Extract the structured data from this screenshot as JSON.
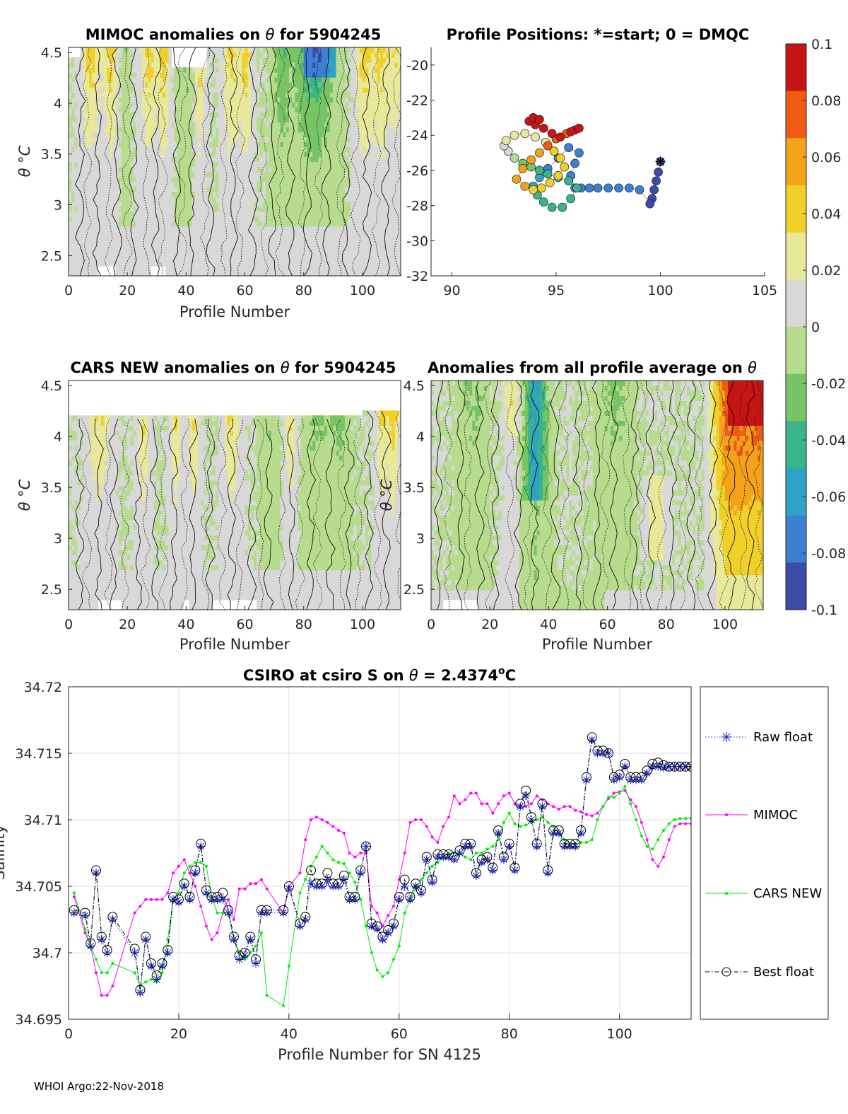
{
  "footer": "WHOI Argo:22-Nov-2018",
  "colors": {
    "raw_float": "#1f2fd6",
    "mimoc": "#ff00ff",
    "cars_new": "#00ee00",
    "best_float": "#000000",
    "colormap": [
      "#3b4ba8",
      "#3d7fd3",
      "#2fa3c6",
      "#3ab489",
      "#77c464",
      "#b7dc8e",
      "#d8d8d8",
      "#e8e89a",
      "#f2d02a",
      "#f5a21b",
      "#ef5b12",
      "#c81414"
    ]
  },
  "colorbar": {
    "ticks": [
      "0.1",
      "0.08",
      "0.06",
      "0.04",
      "0.02",
      "0",
      "-0.02",
      "-0.04",
      "-0.06",
      "-0.08",
      "-0.1"
    ]
  },
  "chart_data": [
    {
      "id": "mimoc",
      "type": "heatmap",
      "title_text": "MIMOC anomalies on ",
      "title_symbol": "θ",
      "title_suffix": " for 5904245",
      "xlabel": "Profile Number",
      "ylabel": "θ °C",
      "xticks": [
        "0",
        "20",
        "40",
        "60",
        "80",
        "100"
      ],
      "yticks": [
        "4.5",
        "4",
        "3.5",
        "3",
        "2.5"
      ],
      "xlim": [
        0,
        113
      ],
      "ylim": [
        2.3,
        4.55
      ]
    },
    {
      "id": "positions",
      "type": "scatter",
      "title": "Profile Positions: *=start; 0 = DMQC",
      "xticks": [
        "90",
        "95",
        "100",
        "105"
      ],
      "yticks": [
        "-20",
        "-22",
        "-24",
        "-26",
        "-28",
        "-30",
        "-32"
      ],
      "xlim": [
        89,
        105
      ],
      "ylim": [
        -32,
        -19
      ],
      "x": [
        100.0,
        99.9,
        99.8,
        99.7,
        99.6,
        99.5,
        99.0,
        98.5,
        98.0,
        97.5,
        97.0,
        96.6,
        96.2,
        95.9,
        95.7,
        95.9,
        96.1,
        95.6,
        95.1,
        94.6,
        94.2,
        93.9,
        94.1,
        94.4,
        94.8,
        95.3,
        95.7,
        96.0,
        95.6,
        95.1,
        94.6,
        94.2,
        93.8,
        93.4,
        93.0,
        92.7,
        92.5,
        92.6,
        93.0,
        93.5,
        94.0,
        94.5,
        94.9,
        95.2,
        95.4,
        95.1,
        94.7,
        94.3,
        93.9,
        93.5,
        93.1,
        93.4,
        93.8,
        94.2,
        94.6,
        95.0,
        95.5,
        95.9,
        96.1,
        95.7,
        95.2,
        94.8,
        94.4,
        94.0,
        93.7,
        93.9,
        94.2
      ],
      "y": [
        -25.5,
        -26.1,
        -26.6,
        -27.1,
        -27.6,
        -27.9,
        -27.1,
        -27.0,
        -27.0,
        -27.0,
        -27.0,
        -27.0,
        -27.0,
        -27.0,
        -26.3,
        -25.6,
        -25.0,
        -24.7,
        -25.3,
        -25.9,
        -26.4,
        -26.9,
        -27.4,
        -27.8,
        -28.1,
        -28.1,
        -27.6,
        -27.0,
        -26.6,
        -26.4,
        -26.2,
        -26.0,
        -25.8,
        -25.6,
        -25.3,
        -24.9,
        -24.6,
        -24.3,
        -24.0,
        -23.9,
        -24.1,
        -24.4,
        -24.9,
        -25.3,
        -25.8,
        -26.3,
        -26.7,
        -27.0,
        -27.1,
        -26.9,
        -26.5,
        -25.9,
        -25.4,
        -25.0,
        -24.6,
        -24.2,
        -23.9,
        -23.7,
        -23.6,
        -23.8,
        -24.1,
        -23.9,
        -23.6,
        -23.4,
        -23.2,
        -23.0,
        -23.1
      ],
      "values": [
        -0.1,
        -0.095,
        -0.092,
        -0.09,
        -0.088,
        -0.086,
        -0.078,
        -0.078,
        -0.078,
        -0.078,
        -0.078,
        -0.078,
        -0.078,
        -0.078,
        -0.078,
        -0.078,
        -0.078,
        -0.076,
        -0.072,
        -0.07,
        -0.06,
        -0.056,
        -0.05,
        -0.045,
        -0.045,
        -0.045,
        -0.045,
        -0.045,
        -0.045,
        -0.045,
        -0.045,
        -0.045,
        -0.02,
        -0.018,
        -0.016,
        0.01,
        0.01,
        0.02,
        0.025,
        0.028,
        0.03,
        0.032,
        0.034,
        0.036,
        0.038,
        0.04,
        0.042,
        0.045,
        0.048,
        0.05,
        0.052,
        0.056,
        0.06,
        0.064,
        0.07,
        0.075,
        0.08,
        0.085,
        0.088,
        0.09,
        0.092,
        0.094,
        0.096,
        0.098,
        0.1,
        0.1,
        0.1
      ]
    },
    {
      "id": "cars",
      "type": "heatmap",
      "title_text": "CARS NEW anomalies on ",
      "title_symbol": "θ",
      "title_suffix": " for 5904245",
      "xlabel": "Profile Number",
      "ylabel": "θ °C",
      "xticks": [
        "0",
        "20",
        "40",
        "60",
        "80",
        "100"
      ],
      "yticks": [
        "4.5",
        "4",
        "3.5",
        "3",
        "2.5"
      ],
      "xlim": [
        0,
        113
      ],
      "ylim": [
        2.3,
        4.55
      ]
    },
    {
      "id": "allavg",
      "type": "heatmap",
      "title_text": "Anomalies from all profile average on ",
      "title_symbol": "θ",
      "xlabel": "Profile Number",
      "ylabel": "θ °C",
      "xticks": [
        "0",
        "20",
        "40",
        "60",
        "80",
        "100"
      ],
      "yticks": [
        "4.5",
        "4",
        "3.5",
        "3",
        "2.5"
      ],
      "xlim": [
        0,
        113
      ],
      "ylim": [
        2.3,
        4.55
      ]
    },
    {
      "id": "salinity",
      "type": "line",
      "title_text": "CSIRO at csiro S on ",
      "title_symbol": "θ",
      "title_value": " = 2.4374",
      "title_sup": "o",
      "title_unit": "C",
      "xlabel": "Profile Number for SN 4125",
      "ylabel": "Salinity",
      "xticks": [
        "0",
        "20",
        "40",
        "60",
        "80",
        "100"
      ],
      "yticks": [
        "34.72",
        "34.715",
        "34.71",
        "34.705",
        "34.7",
        "34.695"
      ],
      "xlim": [
        0,
        113
      ],
      "ylim": [
        34.695,
        34.72
      ],
      "legend": [
        "Raw float",
        "MIMOC",
        "CARS NEW",
        "Best float"
      ],
      "x": [
        1,
        3,
        4,
        5,
        6,
        7,
        8,
        12,
        13,
        14,
        15,
        16,
        17,
        18,
        19,
        20,
        21,
        22,
        23,
        24,
        25,
        26,
        27,
        28,
        29,
        30,
        31,
        32,
        33,
        34,
        35,
        36,
        39,
        40,
        42,
        43,
        44,
        45,
        46,
        47,
        48,
        49,
        50,
        51,
        52,
        53,
        54,
        55,
        56,
        57,
        58,
        59,
        60,
        61,
        62,
        63,
        64,
        65,
        66,
        67,
        68,
        69,
        70,
        71,
        72,
        73,
        74,
        75,
        76,
        77,
        78,
        79,
        80,
        81,
        82,
        83,
        84,
        85,
        86,
        87,
        88,
        89,
        90,
        91,
        92,
        93,
        94,
        95,
        96,
        97,
        98,
        99,
        100,
        101,
        102,
        103,
        104,
        105,
        106,
        107,
        108,
        109,
        110,
        111,
        112,
        113
      ],
      "series": [
        {
          "name": "Raw float",
          "values": [
            34.703,
            34.7028,
            34.7005,
            34.706,
            34.701,
            34.7,
            34.7025,
            34.7,
            34.697,
            34.701,
            34.699,
            34.698,
            34.699,
            34.7,
            34.704,
            34.7038,
            34.705,
            34.704,
            34.706,
            34.708,
            34.7045,
            34.704,
            34.704,
            34.704,
            34.703,
            34.701,
            34.6995,
            34.6998,
            34.701,
            34.6992,
            34.703,
            34.703,
            34.703,
            34.7048,
            34.702,
            34.7025,
            34.7052,
            34.705,
            34.705,
            34.7055,
            34.705,
            34.705,
            34.7055,
            34.704,
            34.704,
            34.706,
            34.708,
            34.702,
            34.7018,
            34.701,
            34.7015,
            34.702,
            34.704,
            34.705,
            34.704,
            34.705,
            34.7045,
            34.707,
            34.7053,
            34.7072,
            34.7072,
            34.7072,
            34.707,
            34.7075,
            34.708,
            34.708,
            34.7058,
            34.7068,
            34.707,
            34.7062,
            34.709,
            34.707,
            34.708,
            34.7062,
            34.711,
            34.7118,
            34.71,
            34.708,
            34.711,
            34.706,
            34.709,
            34.709,
            34.708,
            34.708,
            34.708,
            34.709,
            34.713,
            34.716,
            34.715,
            34.715,
            34.715,
            34.713,
            34.7132,
            34.714,
            34.713,
            34.713,
            34.713,
            34.7135,
            34.714,
            34.714,
            34.7139,
            34.714,
            34.714,
            34.714,
            34.714,
            34.714
          ]
        },
        {
          "name": "MIMOC",
          "values": [
            34.7042,
            34.7015,
            34.7005,
            34.6985,
            34.6968,
            34.6968,
            34.6975,
            34.703,
            34.7035,
            34.704,
            34.704,
            34.704,
            34.704,
            34.7045,
            34.706,
            34.7065,
            34.707,
            34.706,
            34.705,
            34.7035,
            34.702,
            34.701,
            34.7015,
            34.703,
            34.704,
            34.7025,
            34.7048,
            34.7048,
            34.7052,
            34.7052,
            34.7055,
            34.7048,
            34.703,
            34.705,
            34.706,
            34.7085,
            34.71,
            34.7102,
            34.71,
            34.7098,
            34.7095,
            34.7092,
            34.709,
            34.7075,
            34.7072,
            34.7075,
            34.7075,
            34.7035,
            34.703,
            34.702,
            34.7028,
            34.7035,
            34.7055,
            34.7075,
            34.7098,
            34.71,
            34.71,
            34.7095,
            34.7087,
            34.7083,
            34.7095,
            34.7102,
            34.7118,
            34.7112,
            34.7115,
            34.712,
            34.712,
            34.7112,
            34.7112,
            34.7105,
            34.7112,
            34.7118,
            34.712,
            34.7112,
            34.711,
            34.711,
            34.7112,
            34.7118,
            34.7115,
            34.7112,
            34.711,
            34.7108,
            34.711,
            34.711,
            34.7107,
            34.7106,
            34.7104,
            34.7103,
            34.7105,
            34.711,
            34.7116,
            34.712,
            34.7121,
            34.7122,
            34.7115,
            34.711,
            34.7098,
            34.7085,
            34.707,
            34.7065,
            34.7072,
            34.7085,
            34.7095,
            34.7097,
            34.7097,
            34.7097
          ]
        },
        {
          "name": "CARS NEW",
          "values": [
            34.7045,
            34.7018,
            34.7005,
            34.6995,
            34.6985,
            34.6985,
            34.6992,
            34.6985,
            34.6975,
            34.6978,
            34.698,
            34.6978,
            34.6985,
            34.701,
            34.704,
            34.7045,
            34.706,
            34.7065,
            34.7068,
            34.7068,
            34.7065,
            34.7042,
            34.703,
            34.703,
            34.703,
            34.701,
            34.7,
            34.6995,
            34.7,
            34.7005,
            34.7015,
            34.6968,
            34.696,
            34.699,
            34.7045,
            34.7055,
            34.7065,
            34.7072,
            34.708,
            34.7075,
            34.707,
            34.7068,
            34.7067,
            34.706,
            34.7053,
            34.704,
            34.702,
            34.7,
            34.6987,
            34.6982,
            34.6985,
            34.6995,
            34.7005,
            34.703,
            34.704,
            34.7048,
            34.7055,
            34.706,
            34.7065,
            34.7068,
            34.7072,
            34.7075,
            34.7075,
            34.7075,
            34.7072,
            34.707,
            34.7075,
            34.7075,
            34.7078,
            34.708,
            34.7085,
            34.7098,
            34.7105,
            34.7097,
            34.7095,
            34.7096,
            34.7098,
            34.71,
            34.7102,
            34.7098,
            34.7095,
            34.709,
            34.7085,
            34.7082,
            34.7082,
            34.7083,
            34.7083,
            34.7085,
            34.71,
            34.711,
            34.7117,
            34.7117,
            34.712,
            34.7125,
            34.7112,
            34.71,
            34.7088,
            34.708,
            34.7078,
            34.7085,
            34.7092,
            34.7097,
            34.71,
            34.7101,
            34.7101,
            34.7101
          ]
        },
        {
          "name": "Best float",
          "values": [
            34.7032,
            34.703,
            34.7007,
            34.7062,
            34.7012,
            34.7002,
            34.7027,
            34.7003,
            34.6972,
            34.7012,
            34.6992,
            34.6983,
            34.6992,
            34.7002,
            34.7042,
            34.704,
            34.7052,
            34.7042,
            34.7062,
            34.7082,
            34.7047,
            34.7042,
            34.7042,
            34.7045,
            34.7032,
            34.7012,
            34.6998,
            34.7,
            34.7012,
            34.6995,
            34.7032,
            34.7032,
            34.7032,
            34.705,
            34.7022,
            34.7027,
            34.7062,
            34.7052,
            34.7052,
            34.706,
            34.7052,
            34.7052,
            34.7058,
            34.7042,
            34.7042,
            34.7062,
            34.708,
            34.7022,
            34.702,
            34.7012,
            34.7017,
            34.7022,
            34.7042,
            34.7055,
            34.7042,
            34.7052,
            34.7047,
            34.7072,
            34.7055,
            34.7074,
            34.7074,
            34.7074,
            34.7072,
            34.7077,
            34.7082,
            34.7082,
            34.706,
            34.707,
            34.7072,
            34.7064,
            34.7092,
            34.7072,
            34.7082,
            34.7064,
            34.7112,
            34.7122,
            34.7102,
            34.7082,
            34.7112,
            34.7062,
            34.7092,
            34.7092,
            34.7082,
            34.7082,
            34.7082,
            34.7092,
            34.7132,
            34.7162,
            34.7152,
            34.7152,
            34.715,
            34.7132,
            34.7134,
            34.7142,
            34.7132,
            34.7132,
            34.7132,
            34.7137,
            34.7142,
            34.7143,
            34.7141,
            34.714,
            34.714,
            34.714,
            34.714,
            34.714
          ]
        }
      ]
    }
  ]
}
